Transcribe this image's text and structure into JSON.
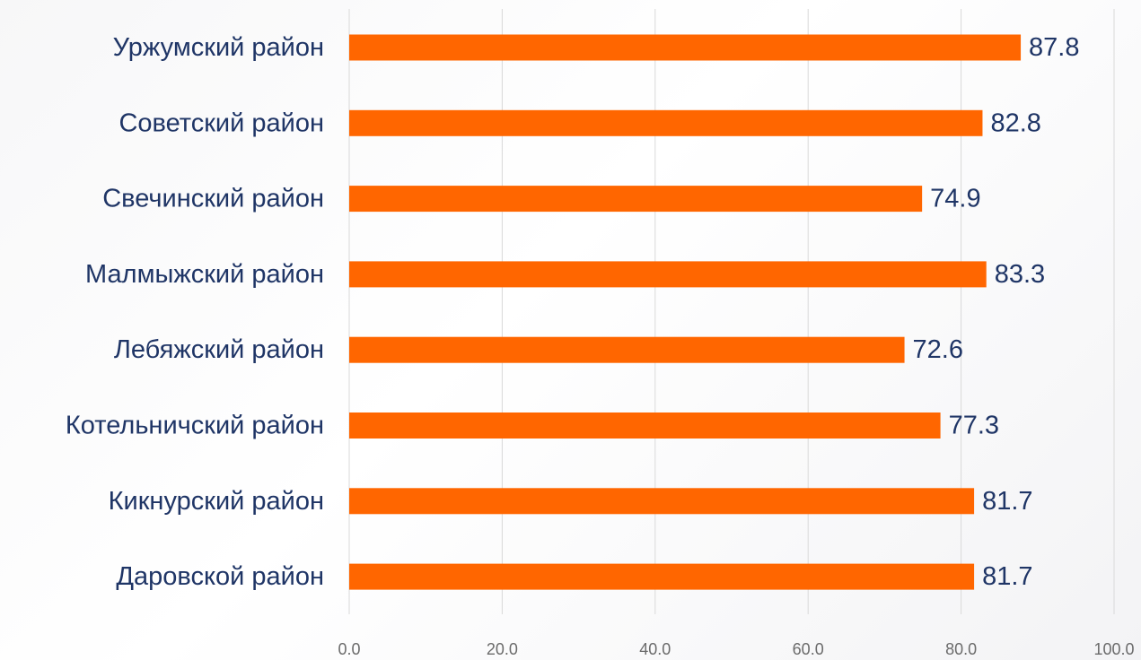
{
  "chart_data": {
    "type": "bar",
    "orientation": "horizontal",
    "title": "",
    "xlabel": "",
    "ylabel": "",
    "categories": [
      "Уржумский район",
      "Советский район",
      "Свечинский район",
      "Малмыжский район",
      "Лебяжский район",
      "Котельничский район",
      "Кикнурский район",
      "Даровской район"
    ],
    "values": [
      87.8,
      82.8,
      74.9,
      83.3,
      72.6,
      77.3,
      81.7,
      81.7
    ],
    "value_labels": [
      "87.8",
      "82.8",
      "74.9",
      "83.3",
      "72.6",
      "77.3",
      "81.7",
      "81.7"
    ],
    "xlim": [
      0,
      100
    ],
    "ticks": [
      0,
      20,
      40,
      60,
      80,
      100
    ],
    "tick_labels": [
      "0.0",
      "20.0",
      "40.0",
      "60.0",
      "80.0",
      "100.0"
    ],
    "grid": true,
    "legend": "none",
    "bar_color": "#ff6600",
    "label_color": "#1f3566",
    "tick_color": "#6b6b6b"
  }
}
